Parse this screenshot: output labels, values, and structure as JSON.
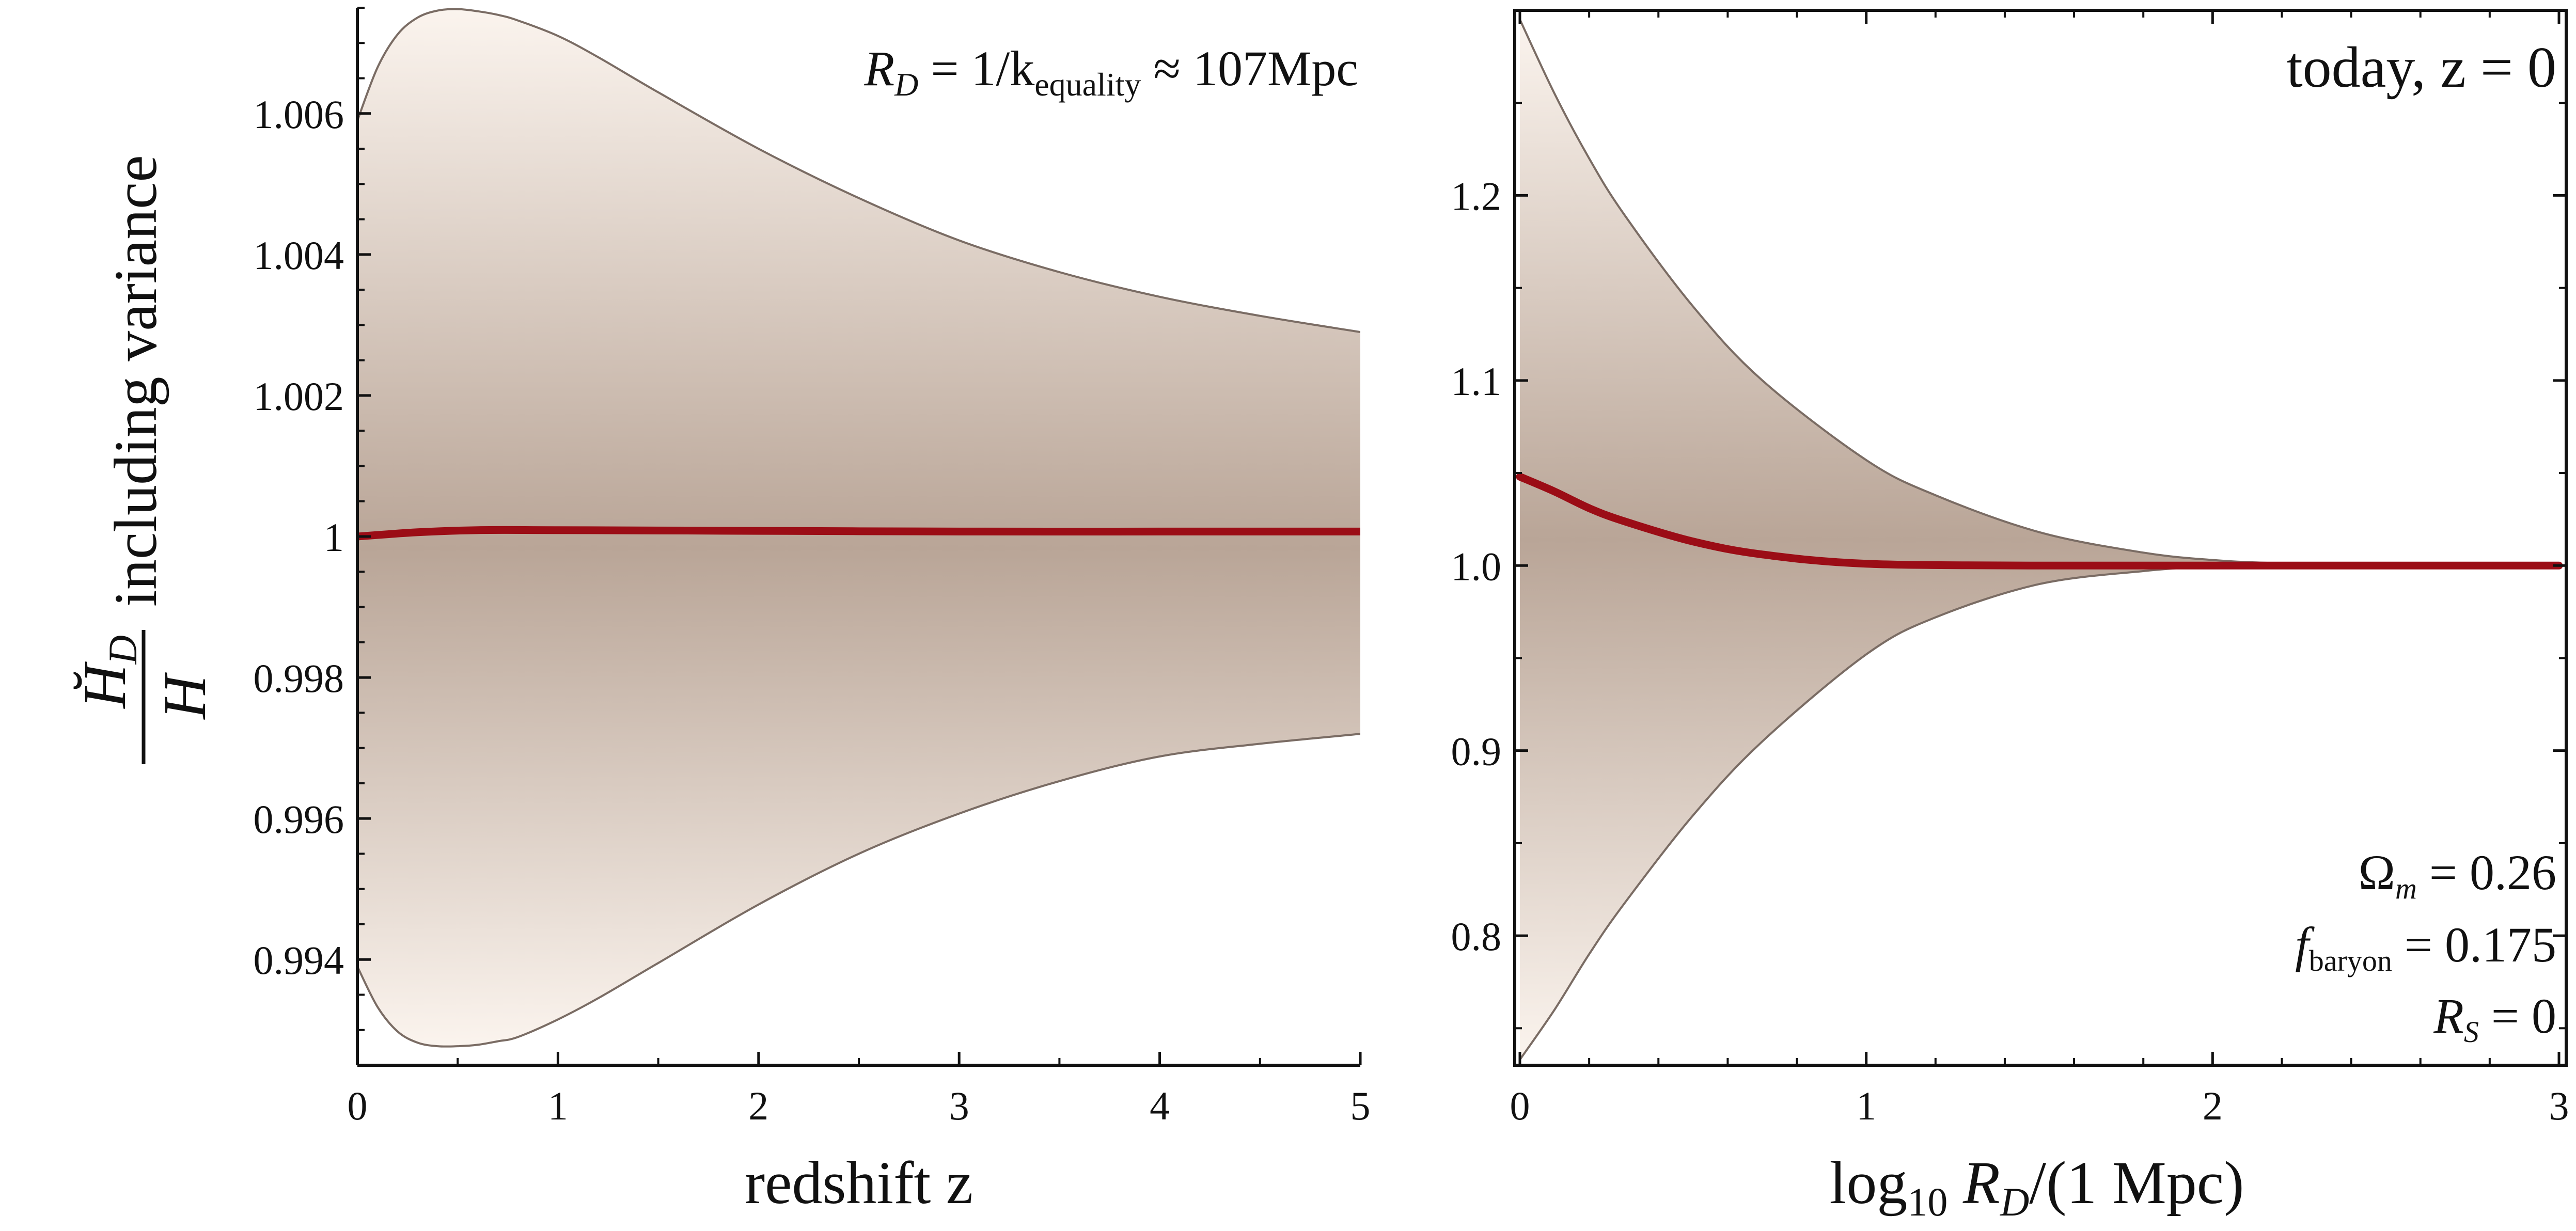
{
  "colors": {
    "band_center": "#b9a597",
    "band_edge": "#fbf4ee",
    "band_outline": "#7a6c64",
    "mean_line": "#9b0d16",
    "axis": "#111111"
  },
  "chart_data": [
    {
      "type": "area",
      "panel": "left",
      "title": "",
      "xlabel": "redshift  z",
      "ylabel": "H̆_D / H  including variance",
      "ylabel_fraction": {
        "numerator": "H̆",
        "numerator_sub": "D",
        "denominator": "H"
      },
      "ylabel_text": "including variance",
      "xlim": [
        0,
        5
      ],
      "ylim": [
        0.9925,
        1.0075
      ],
      "x_ticks": [
        0,
        1,
        2,
        3,
        4,
        5
      ],
      "x_tick_labels": [
        "0",
        "1",
        "2",
        "3",
        "4",
        "5"
      ],
      "y_ticks": [
        0.994,
        0.996,
        0.998,
        1.0,
        1.002,
        1.004,
        1.006
      ],
      "y_tick_labels": [
        "0.994",
        "0.996",
        "0.998",
        "1",
        "1.002",
        "1.004",
        "1.006"
      ],
      "annotation": {
        "lhs": "R",
        "lhs_sub": "D",
        "mid": " = 1/k",
        "mid_sub": "equality",
        "rhs": " ≈ 107Mpc"
      },
      "grid": false,
      "series": [
        {
          "name": "upper",
          "x": [
            0,
            0.1,
            0.2,
            0.3,
            0.4,
            0.5,
            0.6,
            0.7,
            0.8,
            1.0,
            1.2,
            1.5,
            2.0,
            2.5,
            3.0,
            3.5,
            4.0,
            4.5,
            5.0
          ],
          "values": [
            1.0059,
            1.00665,
            1.00712,
            1.00736,
            1.00746,
            1.00748,
            1.00745,
            1.0074,
            1.00732,
            1.0071,
            1.0068,
            1.0063,
            1.0055,
            1.0048,
            1.0042,
            1.00375,
            1.0034,
            1.00313,
            1.0029
          ]
        },
        {
          "name": "lower",
          "x": [
            0,
            0.1,
            0.2,
            0.3,
            0.4,
            0.5,
            0.6,
            0.7,
            0.8,
            1.0,
            1.2,
            1.5,
            2.0,
            2.5,
            3.0,
            3.5,
            4.0,
            4.5,
            5.0
          ],
          "values": [
            0.9939,
            0.99333,
            0.99298,
            0.99282,
            0.99277,
            0.99277,
            0.99279,
            0.99284,
            0.9929,
            0.99315,
            0.99345,
            0.99395,
            0.99478,
            0.9955,
            0.99607,
            0.99653,
            0.99688,
            0.99706,
            0.9972
          ]
        },
        {
          "name": "mean",
          "x": [
            0,
            0.3,
            0.6,
            1.0,
            2.0,
            3.0,
            4.0,
            5.0
          ],
          "values": [
            1.0,
            1.00006,
            1.00009,
            1.00009,
            1.00008,
            1.00007,
            1.00007,
            1.00007
          ]
        }
      ]
    },
    {
      "type": "area",
      "panel": "right",
      "title": "",
      "xlabel": "log₁₀ R_D/(1 Mpc)",
      "xlabel_parts": {
        "pre": "log",
        "pre_sub": "10",
        "mid": " R",
        "mid_sub": "D",
        "post": "/(1 Mpc)"
      },
      "ylabel": "",
      "xlim": [
        0,
        3
      ],
      "ylim": [
        0.73,
        1.3
      ],
      "x_ticks": [
        0,
        1,
        2,
        3
      ],
      "x_tick_labels": [
        "0",
        "1",
        "2",
        "3"
      ],
      "y_ticks": [
        0.8,
        0.9,
        1.0,
        1.1,
        1.2
      ],
      "y_tick_labels": [
        "0.8",
        "0.9",
        "1.0",
        "1.1",
        "1.2"
      ],
      "annotation_top": "today,  z = 0",
      "annotations_bottom": [
        {
          "lhs": "Ω",
          "lhs_sub": "m",
          "rhs": " = 0.26"
        },
        {
          "lhs": "f",
          "lhs_sub": "baryon",
          "rhs": " = 0.175"
        },
        {
          "lhs": "R",
          "lhs_sub": "S",
          "rhs": " = 0"
        }
      ],
      "grid": false,
      "series": [
        {
          "name": "upper",
          "x": [
            0,
            0.1,
            0.2,
            0.3,
            0.5,
            0.7,
            1.0,
            1.2,
            1.5,
            1.8,
            2.0,
            2.2,
            2.5,
            2.8,
            3.0
          ],
          "values": [
            1.295,
            1.255,
            1.22,
            1.19,
            1.14,
            1.1,
            1.057,
            1.038,
            1.018,
            1.007,
            1.003,
            1.0012,
            1.0003,
            1.0001,
            1.0
          ]
        },
        {
          "name": "lower",
          "x": [
            0,
            0.1,
            0.2,
            0.3,
            0.5,
            0.7,
            1.0,
            1.2,
            1.5,
            1.8,
            2.0,
            2.2,
            2.5,
            2.8,
            3.0
          ],
          "values": [
            0.733,
            0.76,
            0.79,
            0.817,
            0.865,
            0.905,
            0.952,
            0.972,
            0.99,
            0.997,
            0.9995,
            1.0,
            1.0,
            1.0,
            1.0
          ]
        },
        {
          "name": "mean",
          "x": [
            0,
            0.1,
            0.2,
            0.3,
            0.5,
            0.7,
            1.0,
            1.5,
            2.0,
            2.5,
            3.0
          ],
          "values": [
            1.048,
            1.04,
            1.031,
            1.024,
            1.013,
            1.006,
            1.001,
            1.0,
            1.0,
            1.0,
            1.0
          ]
        }
      ]
    }
  ]
}
